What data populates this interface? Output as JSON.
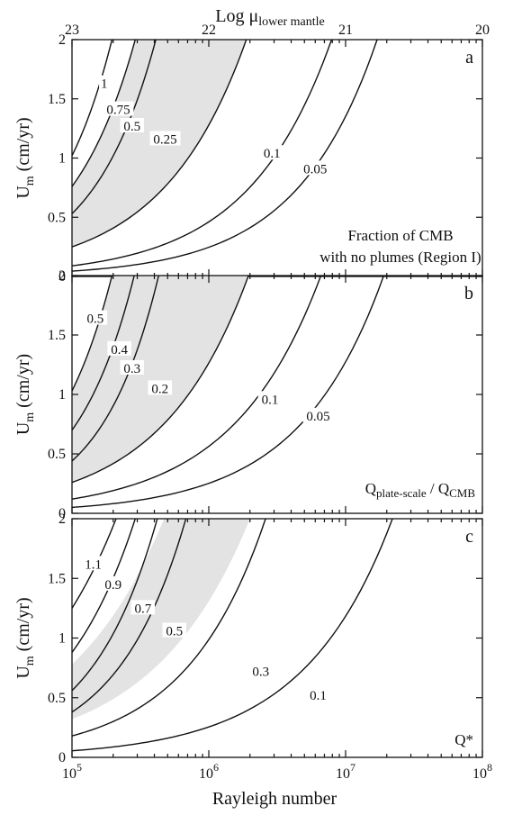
{
  "top_axis": {
    "label": "Log μ",
    "label_sub": "lower mantle",
    "ticks": [
      "23",
      "22",
      "21",
      "20"
    ]
  },
  "x_axis": {
    "label": "Rayleigh number",
    "base": "10",
    "exponents": [
      "5",
      "6",
      "7",
      "8"
    ]
  },
  "chart_data": [
    {
      "id": "a",
      "type": "line",
      "panel_label": "a",
      "ylabel": "U",
      "ylabel_sub": "m",
      "ylabel_unit": "(cm/yr)",
      "xscale": "log",
      "xlim": [
        100000,
        100000000
      ],
      "ylim": [
        0,
        2
      ],
      "yticks": [
        "0",
        "0.5",
        "1",
        "1.5",
        "2"
      ],
      "annotation": [
        "Fraction of CMB",
        "with no plumes (Region I)"
      ],
      "shaded_band": {
        "between": [
          "0.75",
          "0.25"
        ]
      },
      "contours": [
        {
          "label": "1",
          "y_at_1e5": 1.02,
          "x_at_top": 196000,
          "label_pos": [
            172000,
            1.63
          ]
        },
        {
          "label": "0.75",
          "y_at_1e5": 0.76,
          "x_at_top": 290000,
          "label_pos": [
            218000,
            1.41
          ]
        },
        {
          "label": "0.5",
          "y_at_1e5": 0.53,
          "x_at_top": 410000,
          "label_pos": [
            275000,
            1.27
          ]
        },
        {
          "label": "0.25",
          "y_at_1e5": 0.25,
          "x_at_top": 1880000,
          "label_pos": [
            480000,
            1.16
          ]
        },
        {
          "label": "0.1",
          "y_at_1e5": 0.09,
          "x_at_top": 7900000,
          "label_pos": [
            2900000,
            1.04
          ]
        },
        {
          "label": "0.05",
          "y_at_1e5": 0.045,
          "x_at_top": 17000000,
          "label_pos": [
            6000000,
            0.91
          ]
        }
      ]
    },
    {
      "id": "b",
      "type": "line",
      "panel_label": "b",
      "ylabel": "U",
      "ylabel_sub": "m",
      "ylabel_unit": "(cm/yr)",
      "xscale": "log",
      "xlim": [
        100000,
        100000000
      ],
      "ylim": [
        0,
        2
      ],
      "yticks": [
        "0",
        "0.5",
        "1",
        "1.5",
        "2"
      ],
      "annotation_q": {
        "q1_sub": "plate-scale",
        "q2_sub": "CMB"
      },
      "shaded_band": {
        "between": [
          "0.5",
          "0.2"
        ]
      },
      "contours": [
        {
          "label": "0.5",
          "y_at_1e5": 1.03,
          "x_at_top": 196000,
          "label_pos": [
            148000,
            1.64
          ]
        },
        {
          "label": "0.4",
          "y_at_1e5": 0.7,
          "x_at_top": 285000,
          "label_pos": [
            222000,
            1.38
          ]
        },
        {
          "label": "0.3",
          "y_at_1e5": 0.44,
          "x_at_top": 430000,
          "label_pos": [
            275000,
            1.22
          ]
        },
        {
          "label": "0.2",
          "y_at_1e5": 0.26,
          "x_at_top": 1950000,
          "label_pos": [
            440000,
            1.05
          ]
        },
        {
          "label": "0.1",
          "y_at_1e5": 0.12,
          "x_at_top": 6600000,
          "label_pos": [
            2800000,
            0.96
          ]
        },
        {
          "label": "0.05",
          "y_at_1e5": 0.05,
          "x_at_top": 19000000,
          "label_pos": [
            6300000,
            0.82
          ]
        }
      ]
    },
    {
      "id": "c",
      "type": "line",
      "panel_label": "c",
      "ylabel": "U",
      "ylabel_sub": "m",
      "ylabel_unit": "(cm/yr)",
      "xscale": "log",
      "xlim": [
        100000,
        100000000
      ],
      "ylim": [
        0,
        2
      ],
      "yticks": [
        "0",
        "0.5",
        "1",
        "1.5",
        "2"
      ],
      "annotation": [
        "Q*"
      ],
      "shaded_band": {
        "y_at_1e5": [
          0.32,
          0.78
        ],
        "x_at_top": [
          470000,
          2000000
        ]
      },
      "contours": [
        {
          "label": "1.1",
          "y_at_1e5": 1.25,
          "x_at_top": 210000,
          "label_pos": [
            143000,
            1.62
          ]
        },
        {
          "label": "0.9",
          "y_at_1e5": 0.88,
          "x_at_top": 290000,
          "label_pos": [
            200000,
            1.45
          ]
        },
        {
          "label": "0.7",
          "y_at_1e5": 0.56,
          "x_at_top": 420000,
          "label_pos": [
            330000,
            1.25
          ]
        },
        {
          "label": "0.5",
          "y_at_1e5": 0.38,
          "x_at_top": 680000,
          "label_pos": [
            560000,
            1.06
          ]
        },
        {
          "label": "0.3",
          "y_at_1e5": 0.18,
          "x_at_top": 2600000,
          "label_pos": [
            2400000,
            0.72
          ]
        },
        {
          "label": "0.1",
          "y_at_1e5": 0.055,
          "x_at_top": 22000000,
          "label_pos": [
            6300000,
            0.52
          ]
        }
      ]
    }
  ]
}
